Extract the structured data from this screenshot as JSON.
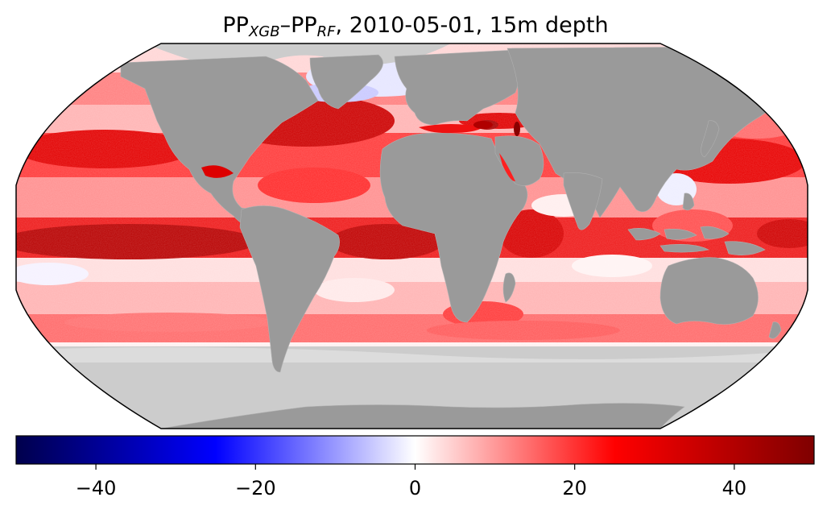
{
  "title": {
    "pp1": "PP",
    "sub1": "XGB",
    "dash": "–",
    "pp2": "PP",
    "sub2": "RF",
    "rest": ", 2010-05-01, 15m depth"
  },
  "map": {
    "projection": "Robinson",
    "colors": {
      "land": "#9a9a9a",
      "ice_no_data": "#cccccc",
      "outline": "#000000",
      "borders": "#b5b5b5"
    }
  },
  "colorbar": {
    "cmap": "seismic",
    "range": [
      -50,
      50
    ],
    "stops": [
      "#00004c",
      "#0000ff",
      "#ffffff",
      "#ff0000",
      "#7f0000"
    ],
    "ticks": [
      {
        "value": -40,
        "label": "−40"
      },
      {
        "value": -20,
        "label": "−20"
      },
      {
        "value": 0,
        "label": "0"
      },
      {
        "value": 20,
        "label": "20"
      },
      {
        "value": 40,
        "label": "40"
      }
    ]
  }
}
